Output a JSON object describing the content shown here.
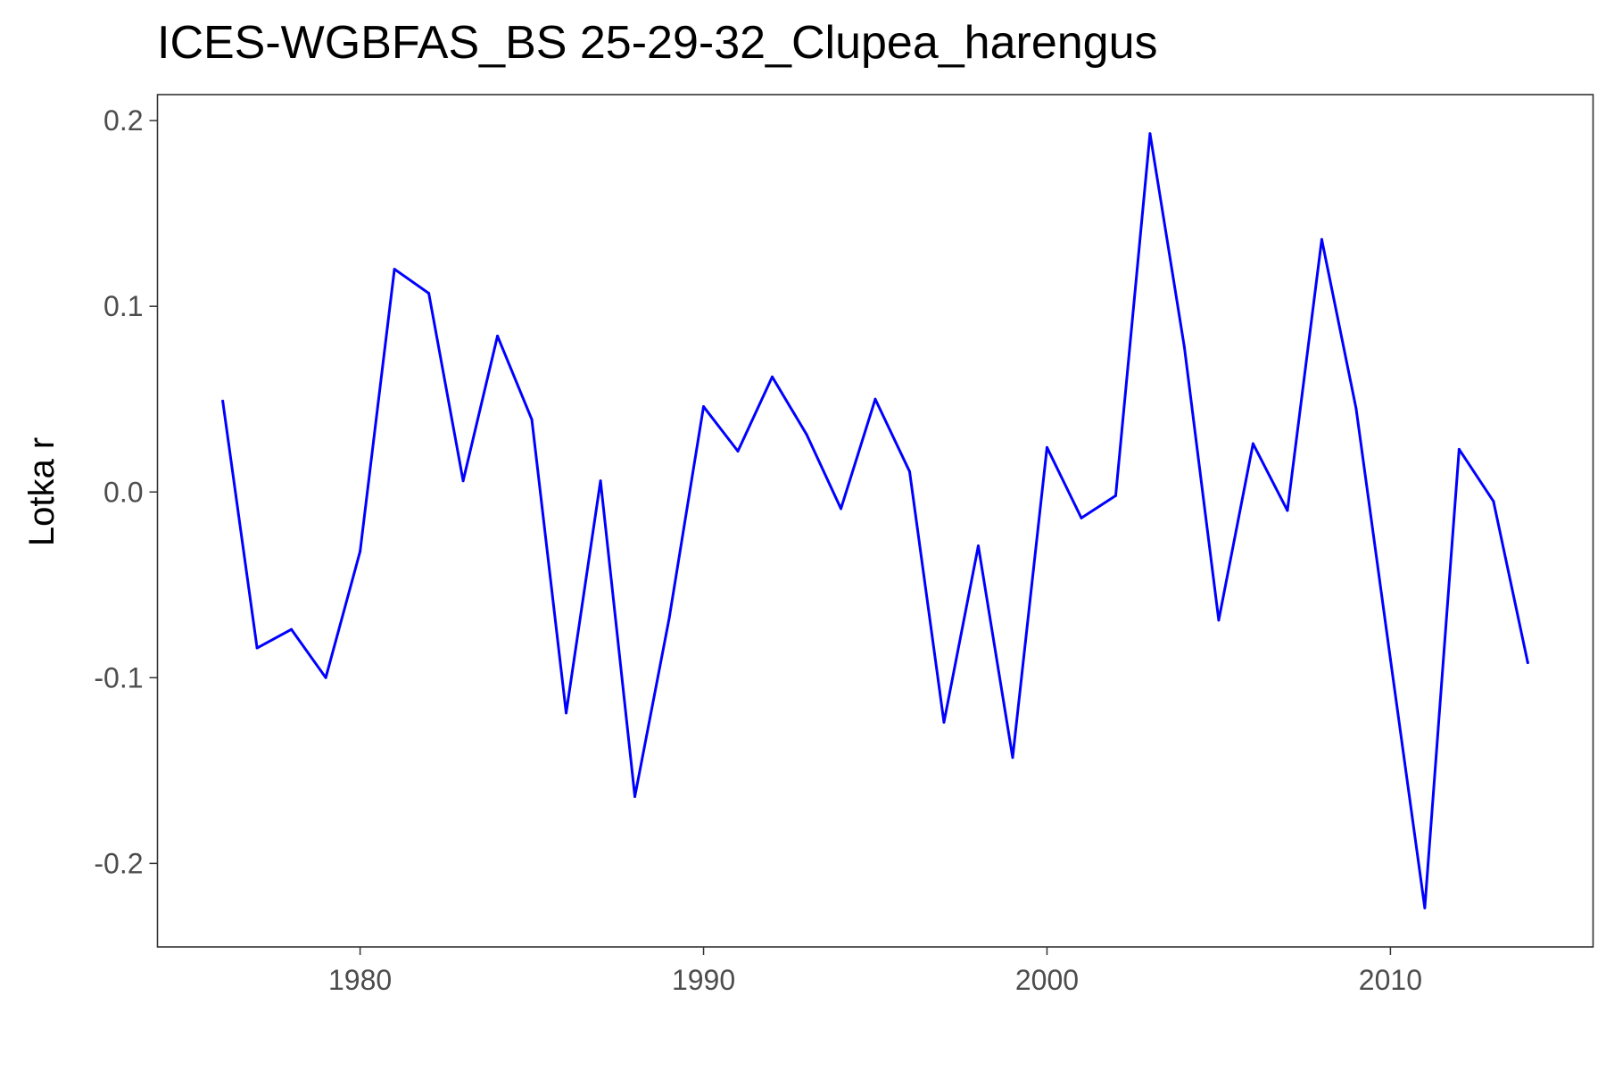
{
  "chart_data": {
    "type": "line",
    "title": "ICES-WGBFAS_BS 25-29-32_Clupea_harengus",
    "xlabel": "",
    "ylabel": "Lotka r",
    "xlim": [
      1974.1,
      2015.9
    ],
    "ylim": [
      -0.245,
      0.214
    ],
    "x_ticks": [
      1980,
      1990,
      2000,
      2010
    ],
    "x_tick_labels": [
      "1980",
      "1990",
      "2000",
      "2010"
    ],
    "y_ticks": [
      0.2,
      0.1,
      0.0,
      -0.1,
      -0.2
    ],
    "y_tick_labels": [
      "0.2",
      "0.1",
      "0.0",
      "-0.1",
      "-0.2"
    ],
    "grid": false,
    "line_color": "#0000ff",
    "series": [
      {
        "x": [
          1976,
          1977,
          1978,
          1979,
          1980,
          1981,
          1982,
          1983,
          1984,
          1985,
          1986,
          1987,
          1988,
          1989,
          1990,
          1991,
          1992,
          1993,
          1994,
          1995,
          1996,
          1997,
          1998,
          1999,
          2000,
          2001,
          2002,
          2003,
          2004,
          2005,
          2006,
          2007,
          2008,
          2009,
          2010,
          2011,
          2012,
          2013,
          2014
        ],
        "values": [
          0.049,
          -0.084,
          -0.074,
          -0.1,
          -0.032,
          0.12,
          0.107,
          0.006,
          0.084,
          0.039,
          -0.119,
          0.006,
          -0.164,
          -0.068,
          0.046,
          0.022,
          0.062,
          0.031,
          -0.009,
          0.05,
          0.011,
          -0.124,
          -0.029,
          -0.143,
          0.024,
          -0.014,
          -0.002,
          0.193,
          0.078,
          -0.069,
          0.026,
          -0.01,
          0.136,
          0.045,
          -0.09,
          -0.224,
          0.023,
          -0.005,
          -0.092
        ]
      }
    ]
  }
}
